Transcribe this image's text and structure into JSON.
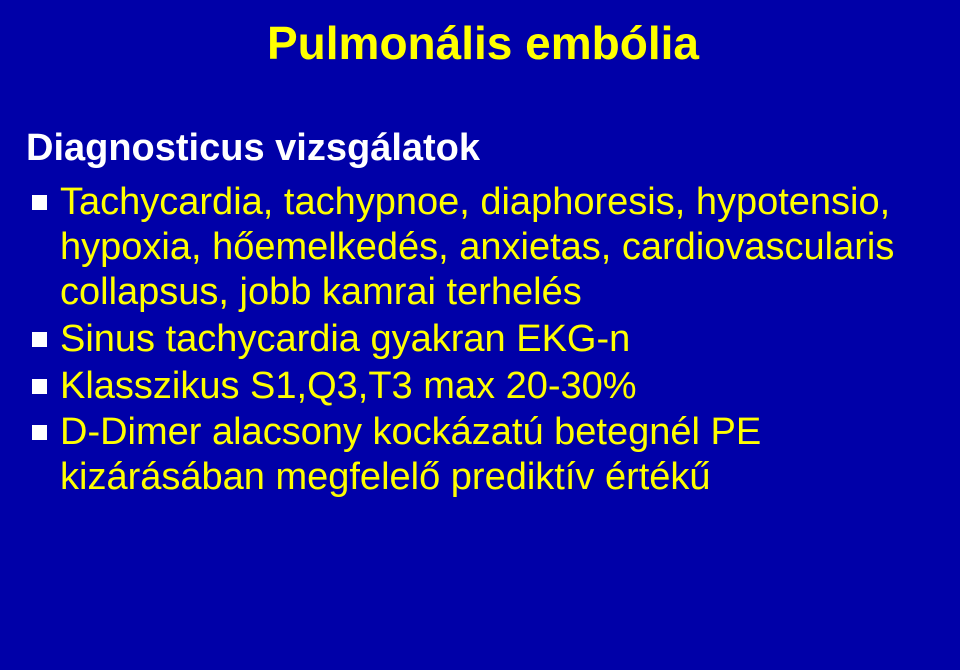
{
  "slide": {
    "background_color": "#0000a8",
    "title_color": "#ffff00",
    "subtitle_color": "#ffffff",
    "body_text_color": "#ffff00",
    "bullet_marker_color": "#ffffff",
    "title_fontsize": 46,
    "subtitle_fontsize": 38,
    "body_fontsize": 38,
    "font_family": "Arial",
    "title": "Pulmonális embólia",
    "subtitle": "Diagnosticus vizsgálatok",
    "bullets": [
      "Tachycardia, tachypnoe, diaphoresis, hypotensio, hypoxia, hőemelkedés, anxietas, cardiovascularis collapsus, jobb kamrai terhelés",
      "Sinus tachycardia gyakran EKG-n",
      "Klasszikus S1,Q3,T3 max 20-30%",
      "D-Dimer alacsony kockázatú betegnél PE kizárásában megfelelő prediktív értékű"
    ]
  }
}
